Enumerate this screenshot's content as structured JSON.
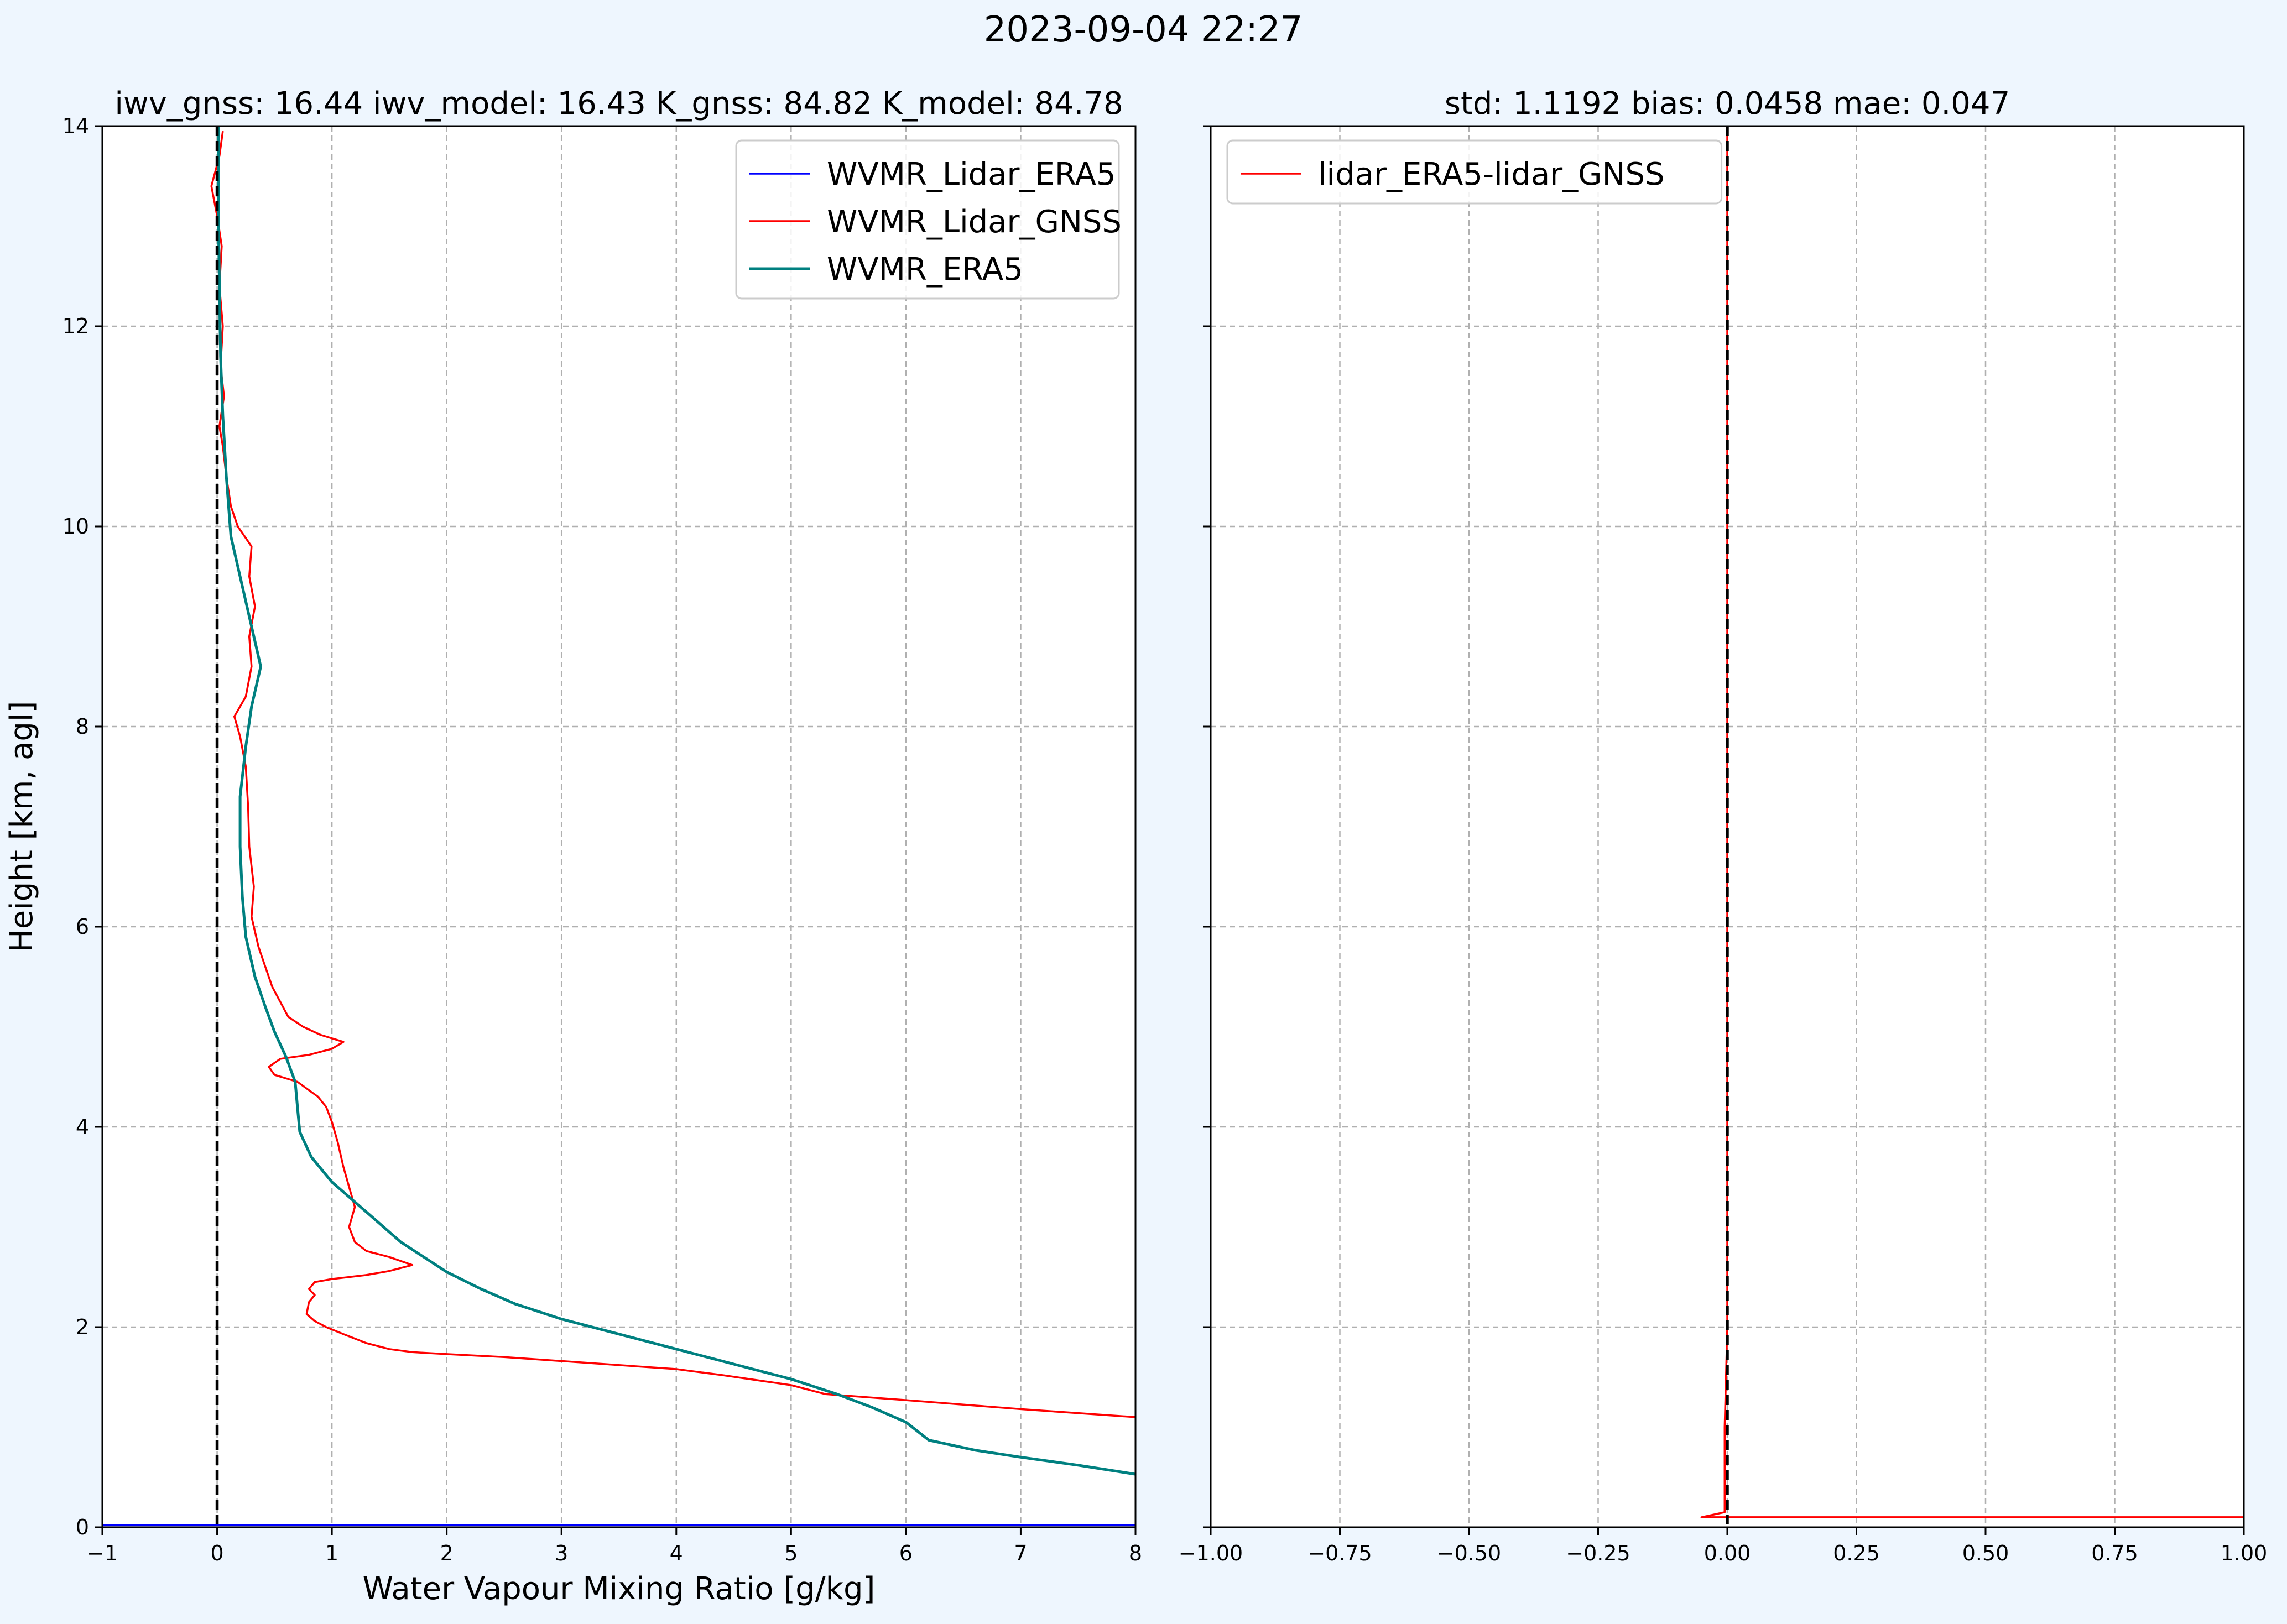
{
  "figure": {
    "suptitle": "2023-09-04 22:27",
    "background": "#eef6fe"
  },
  "chart_data": [
    {
      "type": "line",
      "title": "iwv_gnss: 16.44    iwv_model: 16.43    K_gnss: 84.82    K_model: 84.78",
      "xlabel": "Water Vapour Mixing Ratio [g/kg]",
      "ylabel": "Height [km, agl]",
      "xlim": [
        -1,
        8
      ],
      "ylim": [
        0,
        14
      ],
      "xticks": [
        -1,
        0,
        1,
        2,
        3,
        4,
        5,
        6,
        7,
        8
      ],
      "xtick_labels": [
        "−1",
        "0",
        "1",
        "2",
        "3",
        "4",
        "5",
        "6",
        "7",
        "8"
      ],
      "yticks": [
        0,
        2,
        4,
        6,
        8,
        10,
        12,
        14
      ],
      "ytick_labels": [
        "0",
        "2",
        "4",
        "6",
        "8",
        "10",
        "12",
        "14"
      ],
      "grid": true,
      "legend_position": "top-right",
      "vline": {
        "x": 0,
        "style": "dashed",
        "color": "#000000"
      },
      "series": [
        {
          "name": "WVMR_Lidar_ERA5",
          "color": "#0000ff",
          "points": [
            [
              -1,
              0.02
            ],
            [
              8,
              0.02
            ]
          ]
        },
        {
          "name": "WVMR_Lidar_GNSS",
          "color": "#ff0000",
          "points": [
            [
              8,
              1.1
            ],
            [
              7,
              1.18
            ],
            [
              6,
              1.27
            ],
            [
              5.3,
              1.33
            ],
            [
              5,
              1.42
            ],
            [
              4.4,
              1.52
            ],
            [
              4,
              1.58
            ],
            [
              3.5,
              1.62
            ],
            [
              3,
              1.66
            ],
            [
              2.5,
              1.7
            ],
            [
              2,
              1.73
            ],
            [
              1.7,
              1.75
            ],
            [
              1.5,
              1.78
            ],
            [
              1.3,
              1.84
            ],
            [
              1.1,
              1.93
            ],
            [
              0.95,
              2.0
            ],
            [
              0.85,
              2.06
            ],
            [
              0.78,
              2.13
            ],
            [
              0.8,
              2.25
            ],
            [
              0.85,
              2.32
            ],
            [
              0.8,
              2.38
            ],
            [
              0.85,
              2.45
            ],
            [
              1.0,
              2.48
            ],
            [
              1.3,
              2.52
            ],
            [
              1.5,
              2.56
            ],
            [
              1.7,
              2.62
            ],
            [
              1.5,
              2.7
            ],
            [
              1.3,
              2.76
            ],
            [
              1.2,
              2.85
            ],
            [
              1.15,
              3.0
            ],
            [
              1.2,
              3.2
            ],
            [
              1.15,
              3.4
            ],
            [
              1.1,
              3.6
            ],
            [
              1.05,
              3.85
            ],
            [
              1.0,
              4.05
            ],
            [
              0.95,
              4.2
            ],
            [
              0.88,
              4.3
            ],
            [
              0.7,
              4.45
            ],
            [
              0.5,
              4.52
            ],
            [
              0.45,
              4.6
            ],
            [
              0.55,
              4.68
            ],
            [
              0.8,
              4.72
            ],
            [
              1.0,
              4.78
            ],
            [
              1.1,
              4.85
            ],
            [
              0.9,
              4.92
            ],
            [
              0.75,
              5.0
            ],
            [
              0.62,
              5.1
            ],
            [
              0.55,
              5.25
            ],
            [
              0.48,
              5.4
            ],
            [
              0.42,
              5.6
            ],
            [
              0.36,
              5.8
            ],
            [
              0.3,
              6.1
            ],
            [
              0.32,
              6.4
            ],
            [
              0.28,
              6.8
            ],
            [
              0.27,
              7.2
            ],
            [
              0.25,
              7.6
            ],
            [
              0.2,
              7.9
            ],
            [
              0.15,
              8.1
            ],
            [
              0.25,
              8.3
            ],
            [
              0.3,
              8.6
            ],
            [
              0.28,
              8.9
            ],
            [
              0.33,
              9.2
            ],
            [
              0.28,
              9.5
            ],
            [
              0.3,
              9.8
            ],
            [
              0.18,
              10.0
            ],
            [
              0.12,
              10.2
            ],
            [
              0.08,
              10.5
            ],
            [
              0.05,
              10.8
            ],
            [
              0.02,
              11.0
            ],
            [
              0.06,
              11.3
            ],
            [
              0.03,
              11.6
            ],
            [
              0.05,
              12.0
            ],
            [
              0.02,
              12.4
            ],
            [
              0.04,
              12.8
            ],
            [
              0.0,
              13.1
            ],
            [
              -0.05,
              13.4
            ],
            [
              0.02,
              13.7
            ],
            [
              0.05,
              13.95
            ]
          ]
        },
        {
          "name": "WVMR_ERA5",
          "color": "#008080",
          "points": [
            [
              8,
              0.53
            ],
            [
              7.5,
              0.62
            ],
            [
              7,
              0.7
            ],
            [
              6.6,
              0.77
            ],
            [
              6.2,
              0.87
            ],
            [
              6.0,
              1.05
            ],
            [
              5.7,
              1.2
            ],
            [
              5.4,
              1.33
            ],
            [
              5.0,
              1.48
            ],
            [
              4.5,
              1.63
            ],
            [
              4.0,
              1.78
            ],
            [
              3.5,
              1.93
            ],
            [
              3.0,
              2.08
            ],
            [
              2.6,
              2.23
            ],
            [
              2.3,
              2.38
            ],
            [
              2.0,
              2.55
            ],
            [
              1.8,
              2.7
            ],
            [
              1.6,
              2.85
            ],
            [
              1.4,
              3.05
            ],
            [
              1.2,
              3.25
            ],
            [
              1.0,
              3.45
            ],
            [
              0.82,
              3.7
            ],
            [
              0.72,
              3.95
            ],
            [
              0.7,
              4.2
            ],
            [
              0.68,
              4.45
            ],
            [
              0.6,
              4.7
            ],
            [
              0.5,
              4.95
            ],
            [
              0.42,
              5.2
            ],
            [
              0.33,
              5.5
            ],
            [
              0.25,
              5.9
            ],
            [
              0.22,
              6.3
            ],
            [
              0.2,
              6.8
            ],
            [
              0.2,
              7.3
            ],
            [
              0.25,
              7.8
            ],
            [
              0.3,
              8.2
            ],
            [
              0.38,
              8.6
            ],
            [
              0.3,
              9.0
            ],
            [
              0.22,
              9.4
            ],
            [
              0.12,
              9.9
            ],
            [
              0.08,
              10.5
            ],
            [
              0.05,
              11.1
            ],
            [
              0.03,
              11.7
            ],
            [
              0.02,
              12.4
            ],
            [
              0.01,
              13.2
            ],
            [
              0.01,
              14.0
            ]
          ]
        }
      ]
    },
    {
      "type": "line",
      "title": "std: 1.1192     bias: 0.0458     mae: 0.047",
      "xlim": [
        -1.0,
        1.0
      ],
      "ylim": [
        0,
        14
      ],
      "xticks": [
        -1.0,
        -0.75,
        -0.5,
        -0.25,
        0.0,
        0.25,
        0.5,
        0.75,
        1.0
      ],
      "xtick_labels": [
        "−1.00",
        "−0.75",
        "−0.50",
        "−0.25",
        "0.00",
        "0.25",
        "0.50",
        "0.75",
        "1.00"
      ],
      "yticks": [
        0,
        2,
        4,
        6,
        8,
        10,
        12,
        14
      ],
      "grid": true,
      "legend_position": "top-left",
      "vline": {
        "x": 0,
        "style": "dashed",
        "color": "#000000"
      },
      "series": [
        {
          "name": "lidar_ERA5-lidar_GNSS",
          "color": "#ff0000",
          "points": [
            [
              1.0,
              0.1
            ],
            [
              -0.05,
              0.1
            ],
            [
              -0.005,
              0.15
            ],
            [
              -0.005,
              1.0
            ],
            [
              0.0,
              2.0
            ],
            [
              0.0,
              14.0
            ]
          ]
        }
      ]
    }
  ]
}
